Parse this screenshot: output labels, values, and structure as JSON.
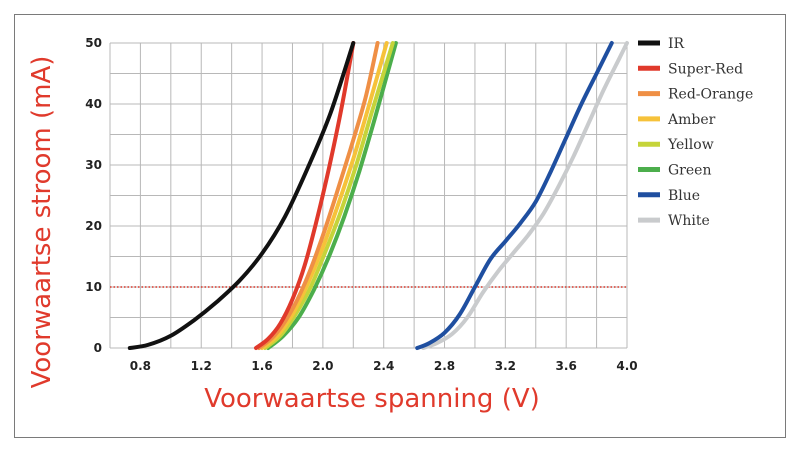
{
  "chart_data": {
    "type": "line",
    "xlabel": "Voorwaartse spanning (V)",
    "ylabel": "Voorwaartse stroom (mA)",
    "xlim": [
      0.6,
      4.0
    ],
    "ylim": [
      0,
      50
    ],
    "x_ticks": [
      "0.8",
      "1.2",
      "1.6",
      "2.0",
      "2.4",
      "2.8",
      "3.2",
      "3.6",
      "4.0"
    ],
    "y_ticks": [
      "0",
      "10",
      "20",
      "30",
      "40",
      "50"
    ],
    "x_tick_values": [
      0.8,
      1.2,
      1.6,
      2.0,
      2.4,
      2.8,
      3.2,
      3.6,
      4.0
    ],
    "y_tick_values": [
      0,
      10,
      20,
      30,
      40,
      50
    ],
    "grid": true,
    "legend_position": "right",
    "reference_line": {
      "y": 10,
      "color": "#d9372a",
      "style": "dotted"
    },
    "series": [
      {
        "name": "IR",
        "color": "#111111",
        "x": [
          0.73,
          0.85,
          1.0,
          1.15,
          1.3,
          1.45,
          1.6,
          1.75,
          1.9,
          2.05,
          2.2
        ],
        "y": [
          0,
          0.5,
          2,
          4.5,
          7.5,
          11,
          15.5,
          21.5,
          29.5,
          38.5,
          50
        ]
      },
      {
        "name": "Super-Red",
        "color": "#e0392b",
        "x": [
          1.56,
          1.64,
          1.72,
          1.8,
          1.88,
          1.96,
          2.04,
          2.12,
          2.2
        ],
        "y": [
          0,
          1.5,
          4,
          8,
          13.5,
          21,
          29.5,
          39,
          50
        ]
      },
      {
        "name": "Red-Orange",
        "color": "#ef8f45",
        "x": [
          1.58,
          1.68,
          1.78,
          1.88,
          1.98,
          2.08,
          2.18,
          2.28,
          2.36
        ],
        "y": [
          0,
          2,
          5.5,
          10.5,
          17,
          24.5,
          32.5,
          41,
          50
        ]
      },
      {
        "name": "Amber",
        "color": "#f6c23a",
        "x": [
          1.6,
          1.7,
          1.8,
          1.9,
          2.0,
          2.1,
          2.2,
          2.3,
          2.42
        ],
        "y": [
          0,
          2,
          5.5,
          10.5,
          16.5,
          23.5,
          31,
          39.5,
          50
        ]
      },
      {
        "name": "Yellow",
        "color": "#c5d43a",
        "x": [
          1.62,
          1.72,
          1.82,
          1.92,
          2.02,
          2.12,
          2.22,
          2.32,
          2.46
        ],
        "y": [
          0,
          2,
          5.5,
          10,
          16,
          22.5,
          30,
          38.5,
          50
        ]
      },
      {
        "name": "Green",
        "color": "#4cae4c",
        "x": [
          1.64,
          1.74,
          1.84,
          1.94,
          2.04,
          2.14,
          2.24,
          2.34,
          2.48
        ],
        "y": [
          0,
          2,
          5,
          9.5,
          15,
          21.5,
          29,
          37.5,
          50
        ]
      },
      {
        "name": "Blue",
        "color": "#1f4fa0",
        "x": [
          2.62,
          2.7,
          2.8,
          2.9,
          3.0,
          3.1,
          3.2,
          3.3,
          3.4,
          3.5,
          3.6,
          3.7,
          3.8,
          3.9
        ],
        "y": [
          0,
          0.8,
          2.5,
          5.5,
          10,
          14.5,
          17.5,
          20.5,
          24,
          29,
          34.5,
          40,
          45,
          50
        ]
      },
      {
        "name": "White",
        "color": "#c9cbcd",
        "x": [
          2.66,
          2.75,
          2.85,
          2.95,
          3.05,
          3.15,
          3.25,
          3.35,
          3.45,
          3.55,
          3.65,
          3.75,
          3.85,
          3.95,
          4.0
        ],
        "y": [
          0,
          0.8,
          2.3,
          5,
          9,
          12.5,
          15.5,
          18.5,
          22,
          26.5,
          31.5,
          37,
          42.5,
          47.5,
          50
        ]
      }
    ]
  }
}
